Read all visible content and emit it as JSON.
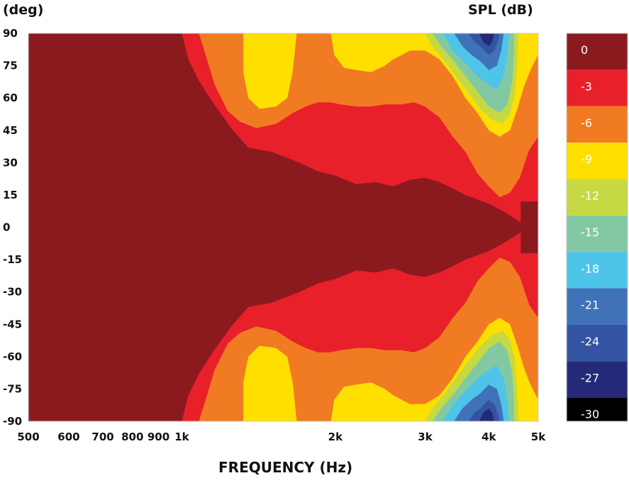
{
  "chart_data": {
    "type": "heatmap",
    "xlabel": "FREQUENCY (Hz)",
    "ylabel": "(deg)",
    "colorbar_label": "SPL (dB)",
    "x_scale": "log",
    "xlim": [
      500,
      5000
    ],
    "ylim": [
      -90,
      90
    ],
    "x_ticks": [
      {
        "value": 500,
        "label": "500"
      },
      {
        "value": 600,
        "label": "600"
      },
      {
        "value": 700,
        "label": "700"
      },
      {
        "value": 800,
        "label": "800"
      },
      {
        "value": 900,
        "label": "900"
      },
      {
        "value": 1000,
        "label": "1k"
      },
      {
        "value": 2000,
        "label": "2k"
      },
      {
        "value": 3000,
        "label": "3k"
      },
      {
        "value": 4000,
        "label": "4k"
      },
      {
        "value": 5000,
        "label": "5k"
      }
    ],
    "y_ticks": [
      {
        "value": 90,
        "label": "90"
      },
      {
        "value": 75,
        "label": "75"
      },
      {
        "value": 60,
        "label": "60"
      },
      {
        "value": 45,
        "label": "45"
      },
      {
        "value": 30,
        "label": "30"
      },
      {
        "value": 15,
        "label": "15"
      },
      {
        "value": 0,
        "label": "0"
      },
      {
        "value": -15,
        "label": "-15"
      },
      {
        "value": -30,
        "label": "-30"
      },
      {
        "value": -45,
        "label": "-45"
      },
      {
        "value": -60,
        "label": "-60"
      },
      {
        "value": -75,
        "label": "-75"
      },
      {
        "value": -90,
        "label": "-90"
      }
    ],
    "colorbar": {
      "levels": [
        {
          "label": "0",
          "color": "#8b1a1e"
        },
        {
          "label": "-3",
          "color": "#e8202a"
        },
        {
          "label": "-6",
          "color": "#f07b22"
        },
        {
          "label": "-9",
          "color": "#ffdf00"
        },
        {
          "label": "-12",
          "color": "#c6d942"
        },
        {
          "label": "-15",
          "color": "#82c9a3"
        },
        {
          "label": "-18",
          "color": "#4fc4e9"
        },
        {
          "label": "-21",
          "color": "#3f72b6"
        },
        {
          "label": "-24",
          "color": "#3354a3"
        },
        {
          "label": "-27",
          "color": "#252a78"
        },
        {
          "label": "-30",
          "color": "#000000"
        }
      ]
    },
    "contours": [
      {
        "level": "-3",
        "color": "#e8202a",
        "boundary": [
          [
            1000,
            90
          ],
          [
            1030,
            78
          ],
          [
            1080,
            68
          ],
          [
            1150,
            58
          ],
          [
            1250,
            46
          ],
          [
            1350,
            37
          ],
          [
            1500,
            35
          ],
          [
            1700,
            30
          ],
          [
            1850,
            26
          ],
          [
            2000,
            24
          ],
          [
            2200,
            20
          ],
          [
            2400,
            21
          ],
          [
            2600,
            19
          ],
          [
            2800,
            22
          ],
          [
            3000,
            23
          ],
          [
            3200,
            21
          ],
          [
            3400,
            18
          ],
          [
            3600,
            15
          ],
          [
            4000,
            11
          ],
          [
            4300,
            7
          ],
          [
            4500,
            4
          ],
          [
            4700,
            1
          ],
          [
            5000,
            -1
          ]
        ],
        "holes": [
          {
            "freq_lo": 4620,
            "freq_hi": 5000,
            "deg_lo": -12,
            "deg_hi": 12
          }
        ]
      },
      {
        "level": "-6",
        "color": "#f07b22",
        "boundary": [
          [
            1080,
            90
          ],
          [
            1120,
            78
          ],
          [
            1160,
            66
          ],
          [
            1230,
            54
          ],
          [
            1300,
            49
          ],
          [
            1400,
            46
          ],
          [
            1530,
            48
          ],
          [
            1650,
            53
          ],
          [
            1750,
            56
          ],
          [
            1850,
            58
          ],
          [
            1950,
            58
          ],
          [
            2050,
            57
          ],
          [
            2200,
            56
          ],
          [
            2350,
            56
          ],
          [
            2500,
            57
          ],
          [
            2600,
            57
          ],
          [
            2700,
            57
          ],
          [
            2850,
            58
          ],
          [
            3000,
            56
          ],
          [
            3200,
            51
          ],
          [
            3400,
            42
          ],
          [
            3600,
            35
          ],
          [
            3800,
            25
          ],
          [
            4000,
            19
          ],
          [
            4200,
            14
          ],
          [
            4400,
            16
          ],
          [
            4600,
            23
          ],
          [
            4800,
            36
          ],
          [
            5000,
            42
          ]
        ]
      },
      {
        "level": "-9",
        "color": "#ffdf00",
        "boundary": [
          [
            1320,
            90
          ],
          [
            1320,
            72
          ],
          [
            1350,
            60
          ],
          [
            1420,
            55
          ],
          [
            1530,
            56
          ],
          [
            1610,
            60
          ],
          [
            1650,
            72
          ],
          [
            1680,
            90
          ]
        ]
      },
      {
        "level": "-9b",
        "color": "#ffdf00",
        "boundary": [
          [
            1960,
            90
          ],
          [
            1990,
            80
          ],
          [
            2080,
            74
          ],
          [
            2200,
            73
          ],
          [
            2350,
            72
          ],
          [
            2500,
            75
          ],
          [
            2600,
            78
          ],
          [
            2700,
            80
          ],
          [
            2800,
            82
          ],
          [
            3000,
            82
          ],
          [
            3200,
            78
          ],
          [
            3400,
            70
          ],
          [
            3600,
            60
          ],
          [
            3800,
            53
          ],
          [
            4000,
            45
          ],
          [
            4200,
            42
          ],
          [
            4400,
            45
          ],
          [
            4550,
            55
          ],
          [
            4700,
            66
          ],
          [
            4850,
            74
          ],
          [
            5000,
            80
          ]
        ]
      },
      {
        "level": "-12",
        "color": "#c6d942",
        "boundary": [
          [
            3000,
            90
          ],
          [
            3100,
            84
          ],
          [
            3300,
            76
          ],
          [
            3450,
            70
          ],
          [
            3650,
            62
          ],
          [
            3850,
            55
          ],
          [
            4050,
            50
          ],
          [
            4250,
            48
          ],
          [
            4400,
            52
          ],
          [
            4500,
            62
          ],
          [
            4560,
            80
          ],
          [
            4580,
            90
          ]
        ]
      },
      {
        "level": "-15",
        "color": "#82c9a3",
        "boundary": [
          [
            3100,
            90
          ],
          [
            3250,
            83
          ],
          [
            3420,
            77
          ],
          [
            3600,
            70
          ],
          [
            3800,
            63
          ],
          [
            4000,
            56
          ],
          [
            4200,
            53
          ],
          [
            4350,
            57
          ],
          [
            4450,
            68
          ],
          [
            4480,
            80
          ],
          [
            4490,
            90
          ]
        ]
      },
      {
        "level": "-18",
        "color": "#4fc4e9",
        "boundary": [
          [
            3250,
            90
          ],
          [
            3400,
            82
          ],
          [
            3600,
            76
          ],
          [
            3800,
            70
          ],
          [
            4000,
            66
          ],
          [
            4150,
            64
          ],
          [
            4280,
            70
          ],
          [
            4350,
            80
          ],
          [
            4380,
            90
          ]
        ]
      },
      {
        "level": "-21",
        "color": "#3f72b6",
        "boundary": [
          [
            3420,
            90
          ],
          [
            3550,
            84
          ],
          [
            3700,
            80
          ],
          [
            3850,
            77
          ],
          [
            4000,
            73
          ],
          [
            4150,
            75
          ],
          [
            4230,
            82
          ],
          [
            4280,
            90
          ]
        ]
      },
      {
        "level": "-24",
        "color": "#3354a3",
        "boundary": [
          [
            3650,
            90
          ],
          [
            3750,
            86
          ],
          [
            3850,
            84
          ],
          [
            4000,
            80
          ],
          [
            4100,
            82
          ],
          [
            4160,
            86
          ],
          [
            4200,
            90
          ]
        ]
      },
      {
        "level": "-27",
        "color": "#252a78",
        "boundary": [
          [
            3830,
            90
          ],
          [
            3900,
            86
          ],
          [
            4000,
            84
          ],
          [
            4060,
            86
          ],
          [
            4100,
            90
          ]
        ]
      }
    ]
  }
}
